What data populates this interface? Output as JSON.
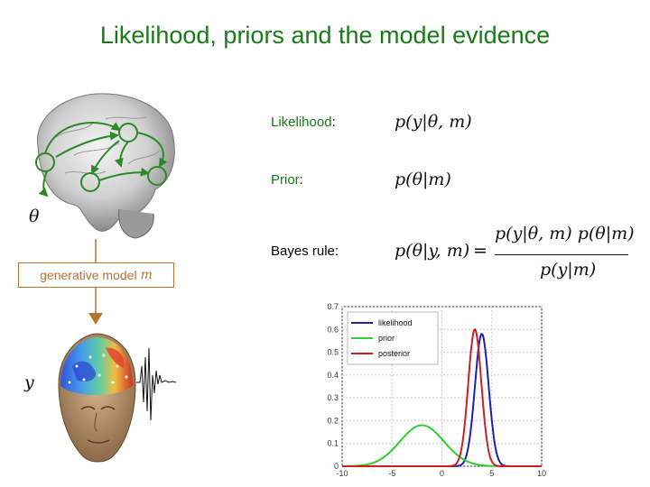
{
  "title": "Likelihood, priors and the model evidence",
  "symbols": {
    "theta": "θ",
    "y": "y",
    "m": "m"
  },
  "generative_box": {
    "label": "generative model",
    "symbol": "m"
  },
  "terms": {
    "likelihood": {
      "name": "Likelihood",
      "colon": ":"
    },
    "prior": {
      "name": "Prior",
      "colon": ":"
    },
    "bayes": {
      "name": "Bayes rule:"
    }
  },
  "formulas": {
    "likelihood": "p(y|θ, m)",
    "prior": "p(θ|m)",
    "posterior": "p(θ|y, m)",
    "equals": "=",
    "numerator": "p(y|θ, m) p(θ|m)",
    "denominator": "p(y|m)"
  },
  "colors": {
    "title": "#1a7a1a",
    "arrow": "#b87333",
    "likelihood": "#1f1fb0",
    "prior": "#33cc33",
    "posterior": "#cc2222"
  },
  "chart_data": {
    "type": "line",
    "xlim": [
      -10,
      10
    ],
    "ylim": [
      0,
      0.7
    ],
    "xticks": [
      "-10",
      "-5",
      "0",
      "5",
      "10"
    ],
    "yticks": [
      "0",
      "0.1",
      "0.2",
      "0.3",
      "0.4",
      "0.5",
      "0.6",
      "0.7"
    ],
    "grid": true,
    "legend_position": "top-left",
    "series": [
      {
        "name": "likelihood",
        "type": "gaussian",
        "mean": 4,
        "peak": 0.58,
        "sd": 0.69,
        "color": "#1f1fb0"
      },
      {
        "name": "prior",
        "type": "gaussian",
        "mean": -2,
        "peak": 0.18,
        "sd": 2.2,
        "color": "#33cc33"
      },
      {
        "name": "posterior",
        "type": "gaussian",
        "mean": 3.3,
        "peak": 0.6,
        "sd": 0.66,
        "color": "#cc2222"
      }
    ]
  }
}
